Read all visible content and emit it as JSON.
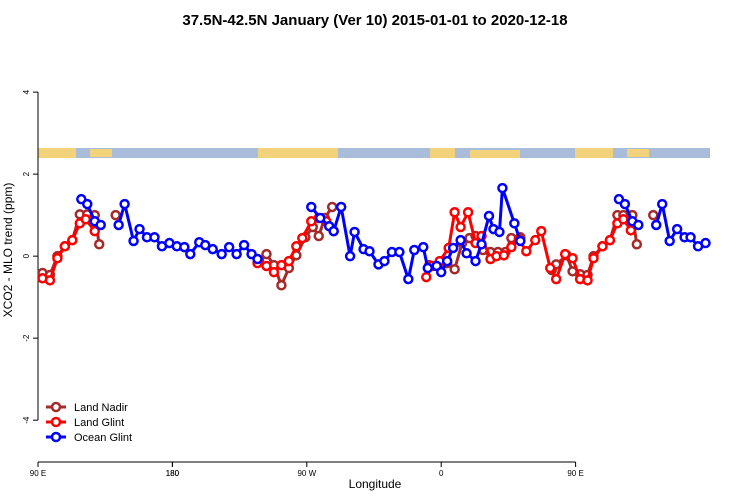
{
  "chart_data": {
    "type": "line",
    "title": "37.5N-42.5N January (Ver 10)   2015-01-01 to 2020-12-18",
    "x_label": "Longitude",
    "y_label": "XCO2 - MLO trend (ppm)",
    "xlim": [
      90,
      540
    ],
    "ylim": [
      -5.02,
      5.32
    ],
    "xticks": [
      {
        "value": 90,
        "label": "90 E"
      },
      180,
      {
        "value": 270,
        "label": "90 W"
      },
      {
        "value": 360,
        "label": "0"
      },
      {
        "value": 450,
        "label": "90 E"
      },
      180.0001
    ],
    "yticks": [
      -4,
      -2,
      0,
      2,
      4
    ],
    "legend": "bottom-left",
    "series": [
      {
        "name": "Land Nadir",
        "color": "#a52a2a",
        "x": [
          93,
          98,
          103,
          108,
          113,
          118,
          123,
          128,
          131,
          null,
          142,
          null,
          238,
          243,
          248,
          253,
          258,
          263,
          269,
          274,
          278,
          282,
          287,
          null,
          352,
          359,
          364,
          369,
          374,
          379,
          383,
          388,
          393,
          398,
          403,
          407,
          413,
          null,
          434,
          437,
          444,
          448,
          453,
          458,
          462,
          468,
          473,
          478,
          482,
          488,
          491,
          null,
          502
        ],
        "values": [
          -0.41,
          -0.46,
          0,
          0.24,
          0.39,
          1.02,
          1.02,
          1.0,
          0.29,
          null,
          1.0,
          null,
          -0.1,
          0.05,
          -0.22,
          -0.71,
          -0.29,
          0.02,
          0.46,
          0.71,
          0.49,
          0.93,
          1.2,
          null,
          -0.22,
          -0.17,
          -0.17,
          -0.32,
          0.32,
          0.44,
          0.49,
          0.15,
          0.1,
          0.1,
          0.1,
          0.44,
          0.46,
          null,
          -0.34,
          -0.2,
          0.02,
          -0.37,
          -0.44,
          -0.46,
          0,
          0.24,
          0.39,
          1.0,
          1.0,
          1.0,
          0.29,
          null,
          1.0
        ]
      },
      {
        "name": "Land Glint",
        "color": "#ff0000",
        "x": [
          93,
          98,
          103,
          108,
          113,
          118,
          122,
          128,
          null,
          237,
          243,
          248,
          253,
          258,
          263,
          267,
          273,
          278,
          283,
          288,
          null,
          350,
          354,
          359,
          365,
          369,
          373,
          378,
          383,
          387,
          393,
          397,
          402,
          407,
          412,
          417,
          423,
          427,
          433,
          437,
          443,
          448,
          453,
          458,
          462,
          468,
          473,
          478,
          482,
          487
        ],
        "values": [
          -0.54,
          -0.59,
          -0.05,
          0.24,
          0.39,
          0.8,
          0.9,
          0.61,
          null,
          -0.17,
          -0.24,
          -0.39,
          -0.22,
          -0.12,
          0.24,
          0.44,
          0.85,
          0.93,
          0.85,
          0.61,
          null,
          -0.51,
          -0.24,
          -0.12,
          0.2,
          1.07,
          0.71,
          1.07,
          0.32,
          0.49,
          -0.07,
          0,
          0.02,
          0.22,
          0.41,
          0.12,
          0.39,
          0.61,
          -0.29,
          -0.56,
          0.05,
          -0.05,
          -0.56,
          -0.59,
          -0.05,
          0.24,
          0.39,
          0.8,
          0.9,
          0.63
        ]
      },
      {
        "name": "Ocean Glint",
        "color": "#0000ff",
        "x": [
          119,
          123,
          128,
          132,
          null,
          144,
          148,
          154,
          158,
          163,
          168,
          173,
          178,
          183,
          188,
          192,
          198,
          202,
          207,
          213,
          218,
          223,
          228,
          233,
          237,
          null,
          273,
          279,
          285,
          288,
          293,
          299,
          302,
          308,
          312,
          318,
          322,
          327,
          332,
          338,
          342,
          348,
          351,
          357,
          360,
          364,
          368,
          373,
          377,
          383,
          387,
          392,
          395,
          399,
          401,
          409,
          413,
          null,
          479,
          483,
          488,
          492,
          null,
          504,
          508,
          513,
          518,
          523,
          527,
          532,
          537
        ],
        "values": [
          1.39,
          1.27,
          0.85,
          0.76,
          null,
          0.76,
          1.27,
          0.37,
          0.66,
          0.46,
          0.46,
          0.24,
          0.32,
          0.24,
          0.22,
          0.05,
          0.34,
          0.27,
          0.17,
          0.05,
          0.22,
          0.05,
          0.27,
          0.05,
          -0.07,
          null,
          1.2,
          0.93,
          0.73,
          0.61,
          1.2,
          0,
          0.59,
          0.17,
          0.12,
          -0.2,
          -0.12,
          0.1,
          0.1,
          -0.56,
          0.15,
          0.22,
          -0.29,
          -0.24,
          -0.39,
          -0.12,
          0.2,
          0.39,
          0.07,
          -0.12,
          0.29,
          0.98,
          0.66,
          0.59,
          1.66,
          0.8,
          0.37,
          null,
          1.39,
          1.27,
          0.85,
          0.76,
          null,
          0.76,
          1.27,
          0.37,
          0.66,
          0.46,
          0.46,
          0.24,
          0.32
        ]
      }
    ]
  }
}
